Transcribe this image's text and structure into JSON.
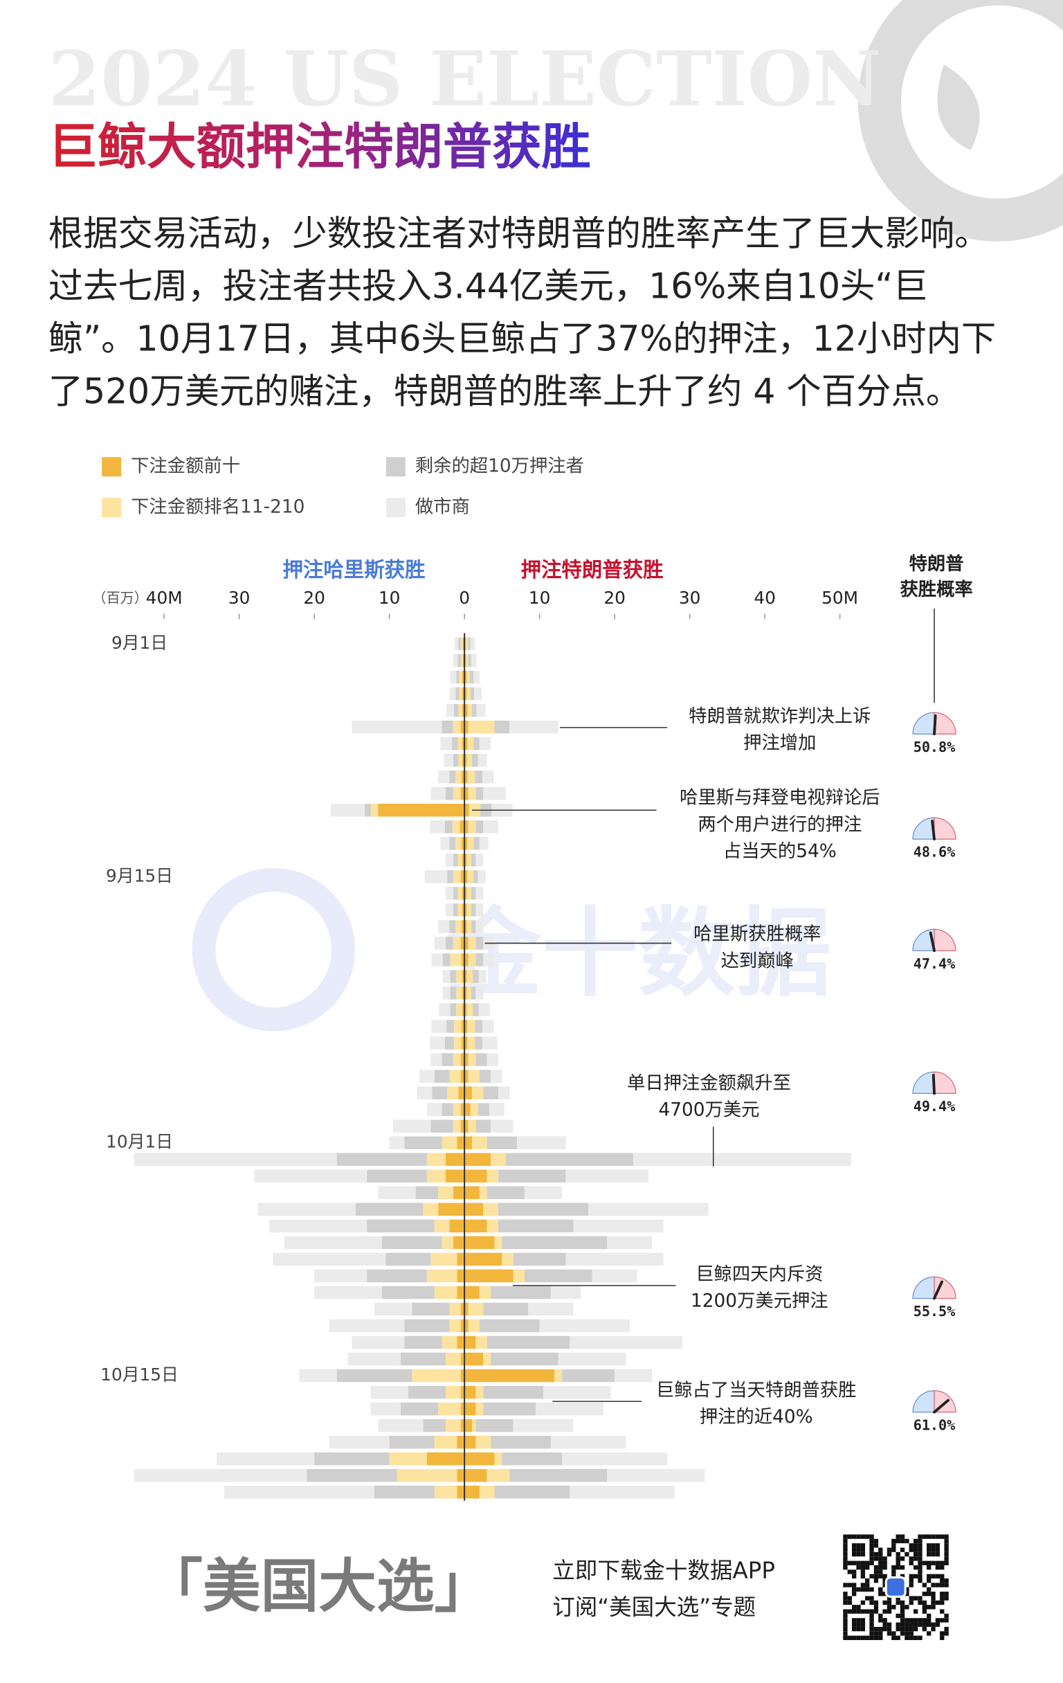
{
  "background_text": "2024 US ELECTION",
  "watermark": "金十数据",
  "footer": {
    "slogan": "「美国大选」",
    "lines": [
      "立即下载金十数据APP",
      "订阅“美国大选”专题"
    ]
  },
  "chart_data": {
    "type": "diverging-bar",
    "title": "巨鲸大额押注特朗普获胜",
    "subtitle_lines": [
      "根据交易活动，少数投注者对特朗普的胜率产生了巨大影响。",
      "过去七周，投注者共投入3.44亿美元，16%来自10头“巨",
      "鲸”。10月17日，其中6头巨鲸占了37%的押注，12小时内下",
      "了520万美元的赌注，特朗普的胜率上升了约 4 个百分点。"
    ],
    "left_label": "押注哈里斯获胜",
    "right_label": "押注特朗普获胜",
    "unit_label": "（百万）",
    "xlim": [
      -44,
      54
    ],
    "xticks": [
      {
        "value": -40,
        "label": "40M"
      },
      {
        "value": -30,
        "label": "30"
      },
      {
        "value": -20,
        "label": "20"
      },
      {
        "value": -10,
        "label": "10"
      },
      0,
      10,
      20,
      30,
      40,
      {
        "value": 50,
        "label": "50M"
      }
    ],
    "categories": [
      "9月1日",
      null,
      null,
      null,
      null,
      null,
      null,
      null,
      null,
      null,
      null,
      null,
      null,
      null,
      "9月15日",
      null,
      null,
      null,
      null,
      null,
      null,
      null,
      null,
      null,
      null,
      null,
      null,
      null,
      null,
      null,
      "10月1日",
      null,
      null,
      null,
      null,
      null,
      null,
      null,
      null,
      null,
      null,
      null,
      null,
      null,
      "10月15日",
      null,
      null,
      null,
      null,
      null,
      null,
      null
    ],
    "series": [
      {
        "name": "下注金额前十",
        "color": "#f2b63c",
        "harris": [
          -0.2,
          -0.2,
          -0.3,
          -0.3,
          -0.3,
          -0.5,
          -0.3,
          -0.3,
          -0.4,
          -0.5,
          -11.5,
          -0.6,
          -0.4,
          -0.3,
          -0.5,
          -0.3,
          -0.3,
          -0.4,
          -0.5,
          -0.4,
          -0.3,
          -0.3,
          -0.3,
          -0.4,
          -0.4,
          -0.5,
          -0.5,
          -0.8,
          -0.5,
          -0.5,
          -1,
          -2.5,
          -2.5,
          -1.5,
          -3.5,
          -2,
          -1.5,
          -1,
          -1,
          -1,
          -0.5,
          -0.5,
          -1,
          -0.5,
          -0.5,
          -0.5,
          -0.5,
          -0.5,
          -1,
          -5,
          -1,
          -1
        ],
        "trump": [
          0.2,
          0.2,
          0.3,
          0.3,
          0.4,
          0.5,
          0.4,
          0.3,
          0.4,
          0.5,
          0.6,
          0.5,
          0.4,
          0.3,
          0.4,
          0.3,
          0.3,
          0.3,
          0.5,
          0.5,
          0.3,
          0.3,
          0.3,
          0.4,
          0.4,
          0.5,
          0.5,
          1,
          0.8,
          0.5,
          1,
          3.5,
          3,
          2,
          2.5,
          3,
          4,
          5,
          6.5,
          2,
          0.5,
          0.5,
          1.5,
          2.5,
          12,
          1.5,
          1.5,
          1,
          1.5,
          4,
          3,
          2
        ]
      },
      {
        "name": "下注金额排名11-210",
        "color": "#fce3a0",
        "harris": [
          -0.3,
          -0.3,
          -0.4,
          -0.4,
          -0.5,
          -1,
          -0.6,
          -0.5,
          -0.8,
          -1,
          -1,
          -1,
          -0.8,
          -0.6,
          -1,
          -0.6,
          -0.6,
          -0.8,
          -1,
          -1.5,
          -0.8,
          -0.8,
          -0.8,
          -1,
          -1,
          -1,
          -1.5,
          -1.5,
          -1,
          -1,
          -2,
          -2.5,
          -2.5,
          -2,
          -2,
          -2,
          -1.5,
          -3.5,
          -4,
          -3,
          -1.5,
          -1.5,
          -2,
          -2,
          -6.5,
          -2,
          -3,
          -2,
          -3,
          -5,
          -8,
          -3
        ],
        "trump": [
          0.3,
          0.3,
          0.4,
          0.5,
          0.6,
          3.5,
          0.8,
          0.7,
          1,
          1,
          1.5,
          1,
          0.8,
          0.6,
          0.8,
          0.6,
          0.6,
          0.6,
          1,
          1,
          0.8,
          0.6,
          0.8,
          1,
          1,
          1,
          1.5,
          1.5,
          1,
          1,
          2,
          2,
          1.5,
          1,
          2,
          1.5,
          1,
          1.5,
          1.5,
          1.5,
          2,
          1.5,
          1.5,
          1,
          1,
          1,
          1,
          0.5,
          2,
          1,
          3,
          2
        ]
      },
      {
        "name": "剩余的超10万押注者",
        "color": "#cfcfcf",
        "harris": [
          -0.3,
          -0.4,
          -0.4,
          -0.5,
          -0.6,
          -1.5,
          -0.8,
          -0.7,
          -0.8,
          -1,
          -0.8,
          -1,
          -0.8,
          -0.6,
          -0.8,
          -0.6,
          -0.6,
          -0.8,
          -1,
          -1,
          -0.8,
          -0.8,
          -0.8,
          -1,
          -1.2,
          -1.5,
          -2,
          -2,
          -1.5,
          -3,
          -5,
          -12,
          -8,
          -3,
          -9,
          -9,
          -8,
          -6,
          -8,
          -7,
          -5,
          -6,
          -5,
          -6,
          -10,
          -5,
          -5,
          -3,
          -6,
          -10,
          -12,
          -8
        ],
        "trump": [
          0.3,
          0.4,
          0.5,
          0.5,
          0.6,
          2,
          0.8,
          0.8,
          1,
          1,
          1.5,
          1,
          0.8,
          0.6,
          0.6,
          0.6,
          0.6,
          0.6,
          1,
          1,
          0.8,
          0.6,
          0.8,
          1,
          1,
          1.5,
          1.5,
          2,
          1.5,
          2,
          4,
          17,
          9,
          5,
          12,
          10,
          14,
          7,
          9,
          8,
          6,
          8,
          11,
          9,
          7,
          8,
          7,
          5,
          8,
          8,
          13,
          10
        ]
      },
      {
        "name": "做市商",
        "color": "#ebebeb",
        "harris": [
          -0.5,
          -0.6,
          -0.8,
          -0.8,
          -1,
          -12,
          -1.5,
          -1.2,
          -1.5,
          -2,
          -4.5,
          -2,
          -1.2,
          -1,
          -3,
          -1,
          -1,
          -1.5,
          -1.5,
          -1.5,
          -1,
          -1,
          -1.5,
          -2,
          -2,
          -1.5,
          -2,
          -2,
          -2,
          -5,
          -2,
          -27,
          -15,
          -5,
          -13,
          -13,
          -13,
          -15,
          -7,
          -9,
          -5,
          -10,
          -7,
          -7,
          -5,
          -5,
          -4,
          -6,
          -8,
          -13,
          -23,
          -20
        ],
        "trump": [
          0.6,
          0.7,
          0.8,
          1,
          1.2,
          6.5,
          1.5,
          1.2,
          1.5,
          3,
          2.8,
          2,
          1.2,
          1,
          1,
          1,
          1,
          1,
          1.5,
          1.5,
          1,
          1,
          1.5,
          1.5,
          2,
          1.5,
          1.5,
          1.5,
          2,
          3,
          6.5,
          29,
          11,
          5,
          16,
          12,
          6,
          13,
          6,
          4,
          6,
          12,
          15,
          9,
          5,
          9,
          9,
          8,
          10,
          14,
          13,
          14
        ]
      }
    ],
    "annotations": [
      [
        "特朗普就欺诈判决上诉",
        "押注增加"
      ],
      [
        "哈里斯与拜登电视辩论后",
        "两个用户进行的押注",
        "占当天的54%"
      ],
      [
        "哈里斯获胜概率",
        "达到巅峰"
      ],
      [
        "单日押注金额飙升至",
        "4700万美元"
      ],
      [
        "巨鲸四天内斥资",
        "1200万美元押注"
      ],
      [
        "巨鲸占了当天特朗普获胜",
        "押注的近40%"
      ]
    ],
    "gauge": {
      "title_lines": [
        "特朗普",
        "获胜概率"
      ],
      "lim": [
        30,
        70
      ],
      "values": [
        50.8,
        48.6,
        47.4,
        49.4,
        55.5,
        61
      ],
      "value_labels": [
        "50.8%",
        "48.6%",
        "47.4%",
        "49.4%",
        "55.5%",
        "61.0%"
      ]
    }
  }
}
